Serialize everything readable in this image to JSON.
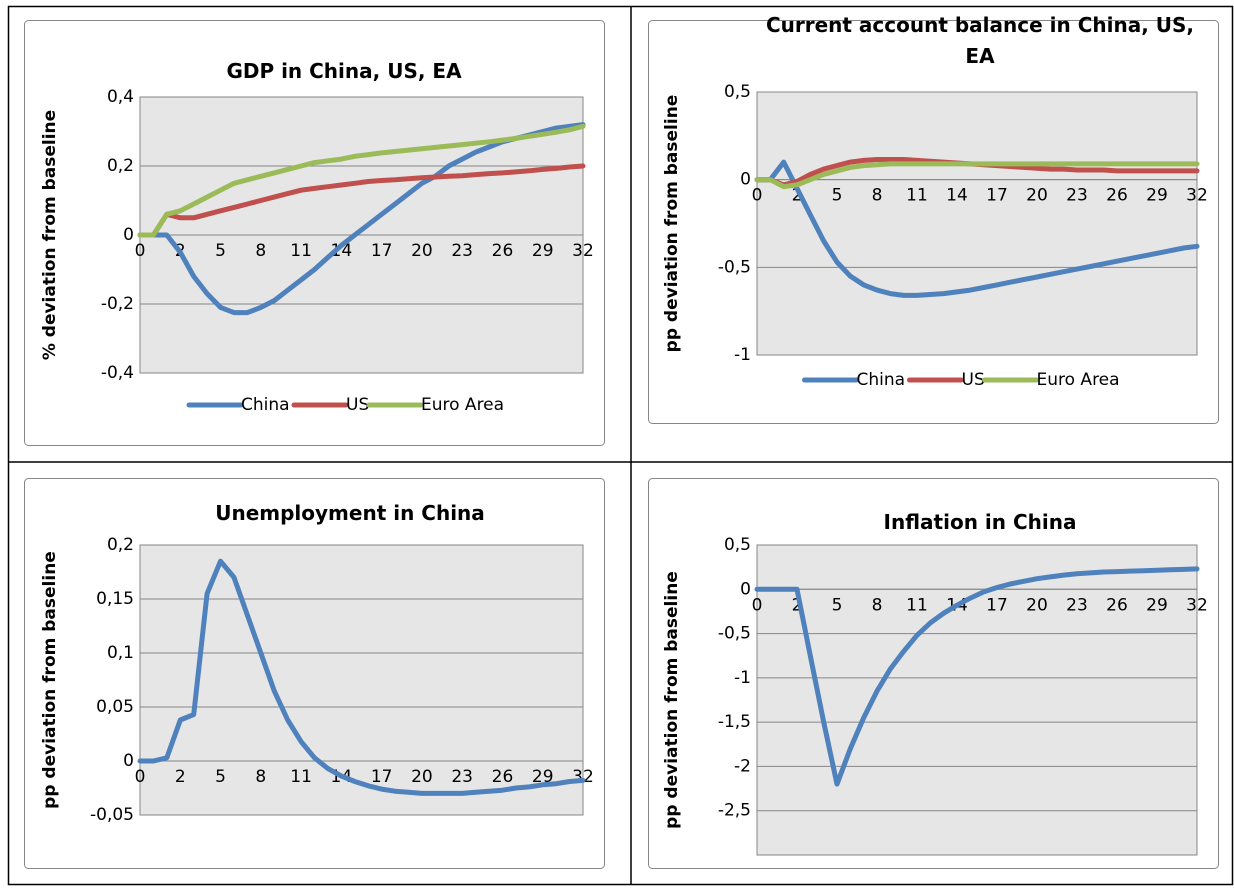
{
  "chart_data": [
    {
      "type": "line",
      "title": "GDP in China, US, EA",
      "y_label": "% deviation from baseline",
      "categories": [
        0,
        null,
        null,
        2,
        null,
        null,
        5,
        null,
        null,
        8,
        null,
        null,
        11,
        null,
        null,
        14,
        null,
        null,
        17,
        null,
        null,
        20,
        null,
        null,
        23,
        null,
        null,
        26,
        null,
        null,
        29,
        null,
        null,
        32
      ],
      "ylim": [
        -0.4,
        0.4
      ],
      "yticks": [
        {
          "value": -0.4,
          "label": "-0,4"
        },
        {
          "value": -0.2,
          "label": "-0,2"
        },
        0,
        {
          "value": 0.2,
          "label": "0,2"
        },
        {
          "value": 0.4,
          "label": "0,4"
        }
      ],
      "grid": true,
      "legend": "bottom",
      "series": [
        {
          "name": "China",
          "color": "#4f81bd",
          "values": [
            0,
            0,
            0,
            -0.05,
            -0.12,
            -0.17,
            -0.21,
            -0.225,
            -0.225,
            -0.21,
            -0.19,
            -0.16,
            -0.13,
            -0.1,
            -0.065,
            -0.03,
            0,
            0.03,
            0.06,
            0.09,
            0.12,
            0.15,
            0.17,
            0.2,
            0.22,
            0.24,
            0.255,
            0.27,
            0.28,
            0.29,
            0.3,
            0.31,
            0.315,
            0.32
          ]
        },
        {
          "name": "US",
          "color": "#c0504d",
          "values": [
            0,
            0,
            0.06,
            0.05,
            0.05,
            0.06,
            0.07,
            0.08,
            0.09,
            0.1,
            0.11,
            0.12,
            0.13,
            0.135,
            0.14,
            0.145,
            0.15,
            0.155,
            0.158,
            0.16,
            0.163,
            0.166,
            0.168,
            0.17,
            0.172,
            0.175,
            0.178,
            0.18,
            0.183,
            0.186,
            0.19,
            0.193,
            0.197,
            0.2
          ]
        },
        {
          "name": "Euro Area",
          "color": "#9bbb59",
          "values": [
            0,
            0,
            0.06,
            0.07,
            0.09,
            0.11,
            0.13,
            0.15,
            0.16,
            0.17,
            0.18,
            0.19,
            0.2,
            0.21,
            0.215,
            0.22,
            0.228,
            0.233,
            0.238,
            0.242,
            0.246,
            0.25,
            0.254,
            0.258,
            0.262,
            0.266,
            0.27,
            0.275,
            0.28,
            0.286,
            0.292,
            0.298,
            0.305,
            0.315
          ]
        }
      ]
    },
    {
      "type": "line",
      "title": "Current account balance in China, US, EA",
      "y_label": "pp deviation from baseline",
      "categories": [
        0,
        null,
        null,
        2,
        null,
        null,
        5,
        null,
        null,
        8,
        null,
        null,
        11,
        null,
        null,
        14,
        null,
        null,
        17,
        null,
        null,
        20,
        null,
        null,
        23,
        null,
        null,
        26,
        null,
        null,
        29,
        null,
        null,
        32
      ],
      "ylim": [
        -1,
        0.5
      ],
      "yticks": [
        -1,
        {
          "value": -0.5,
          "label": "-0,5"
        },
        0,
        {
          "value": 0.5,
          "label": "0,5"
        }
      ],
      "grid": true,
      "legend": "bottom",
      "series": [
        {
          "name": "China",
          "color": "#4f81bd",
          "values": [
            0,
            0,
            0.1,
            -0.05,
            -0.2,
            -0.35,
            -0.47,
            -0.55,
            -0.6,
            -0.63,
            -0.65,
            -0.66,
            -0.66,
            -0.655,
            -0.65,
            -0.64,
            -0.63,
            -0.615,
            -0.6,
            -0.585,
            -0.57,
            -0.555,
            -0.54,
            -0.525,
            -0.51,
            -0.495,
            -0.48,
            -0.465,
            -0.45,
            -0.435,
            -0.42,
            -0.405,
            -0.39,
            -0.38
          ]
        },
        {
          "name": "US",
          "color": "#c0504d",
          "values": [
            0,
            0,
            -0.03,
            -0.01,
            0.03,
            0.06,
            0.08,
            0.1,
            0.11,
            0.115,
            0.115,
            0.115,
            0.11,
            0.105,
            0.1,
            0.095,
            0.09,
            0.085,
            0.08,
            0.075,
            0.07,
            0.065,
            0.06,
            0.06,
            0.055,
            0.055,
            0.055,
            0.05,
            0.05,
            0.05,
            0.05,
            0.05,
            0.05,
            0.05
          ]
        },
        {
          "name": "Euro Area",
          "color": "#9bbb59",
          "values": [
            0,
            0,
            -0.04,
            -0.03,
            0,
            0.03,
            0.05,
            0.07,
            0.08,
            0.085,
            0.09,
            0.09,
            0.09,
            0.09,
            0.09,
            0.09,
            0.09,
            0.09,
            0.09,
            0.09,
            0.09,
            0.09,
            0.09,
            0.09,
            0.09,
            0.09,
            0.09,
            0.09,
            0.09,
            0.09,
            0.09,
            0.09,
            0.09,
            0.09
          ]
        }
      ]
    },
    {
      "type": "line",
      "title": "Unemployment in China",
      "y_label": "pp deviation from baseline",
      "categories": [
        0,
        null,
        null,
        2,
        null,
        null,
        5,
        null,
        null,
        8,
        null,
        null,
        11,
        null,
        null,
        14,
        null,
        null,
        17,
        null,
        null,
        20,
        null,
        null,
        23,
        null,
        null,
        26,
        null,
        null,
        29,
        null,
        null,
        32
      ],
      "ylim": [
        -0.05,
        0.2
      ],
      "yticks": [
        {
          "value": -0.05,
          "label": "-0,05"
        },
        0,
        {
          "value": 0.05,
          "label": "0,05"
        },
        {
          "value": 0.1,
          "label": "0,1"
        },
        {
          "value": 0.15,
          "label": "0,15"
        },
        {
          "value": 0.2,
          "label": "0,2"
        }
      ],
      "grid": true,
      "series": [
        {
          "color": "#4f81bd",
          "values": [
            0,
            0,
            0.003,
            0.038,
            0.043,
            0.155,
            0.185,
            0.17,
            0.135,
            0.1,
            0.065,
            0.038,
            0.018,
            0.003,
            -0.007,
            -0.014,
            -0.019,
            -0.023,
            -0.026,
            -0.028,
            -0.029,
            -0.03,
            -0.03,
            -0.03,
            -0.03,
            -0.029,
            -0.028,
            -0.027,
            -0.025,
            -0.024,
            -0.022,
            -0.021,
            -0.019,
            -0.018
          ]
        }
      ]
    },
    {
      "type": "line",
      "title": "Inflation in China",
      "y_label": "pp deviation from baseline",
      "categories": [
        0,
        null,
        null,
        2,
        null,
        null,
        5,
        null,
        null,
        8,
        null,
        null,
        11,
        null,
        null,
        14,
        null,
        null,
        17,
        null,
        null,
        20,
        null,
        null,
        23,
        null,
        null,
        26,
        null,
        null,
        29,
        null,
        null,
        32
      ],
      "ylim": [
        -3,
        0.5
      ],
      "yticks": [
        {
          "value": -2.5,
          "label": "-2,5"
        },
        -2,
        {
          "value": -1.5,
          "label": "-1,5"
        },
        -1,
        {
          "value": -0.5,
          "label": "-0,5"
        },
        0,
        {
          "value": 0.5,
          "label": "0,5"
        }
      ],
      "grid": true,
      "series": [
        {
          "color": "#4f81bd",
          "values": [
            0,
            0,
            0,
            0,
            -0.75,
            -1.5,
            -2.2,
            -1.8,
            -1.45,
            -1.15,
            -0.9,
            -0.7,
            -0.52,
            -0.38,
            -0.27,
            -0.18,
            -0.1,
            -0.03,
            0.02,
            0.06,
            0.09,
            0.12,
            0.14,
            0.16,
            0.175,
            0.185,
            0.195,
            0.2,
            0.205,
            0.21,
            0.215,
            0.22,
            0.225,
            0.23
          ]
        }
      ]
    }
  ]
}
